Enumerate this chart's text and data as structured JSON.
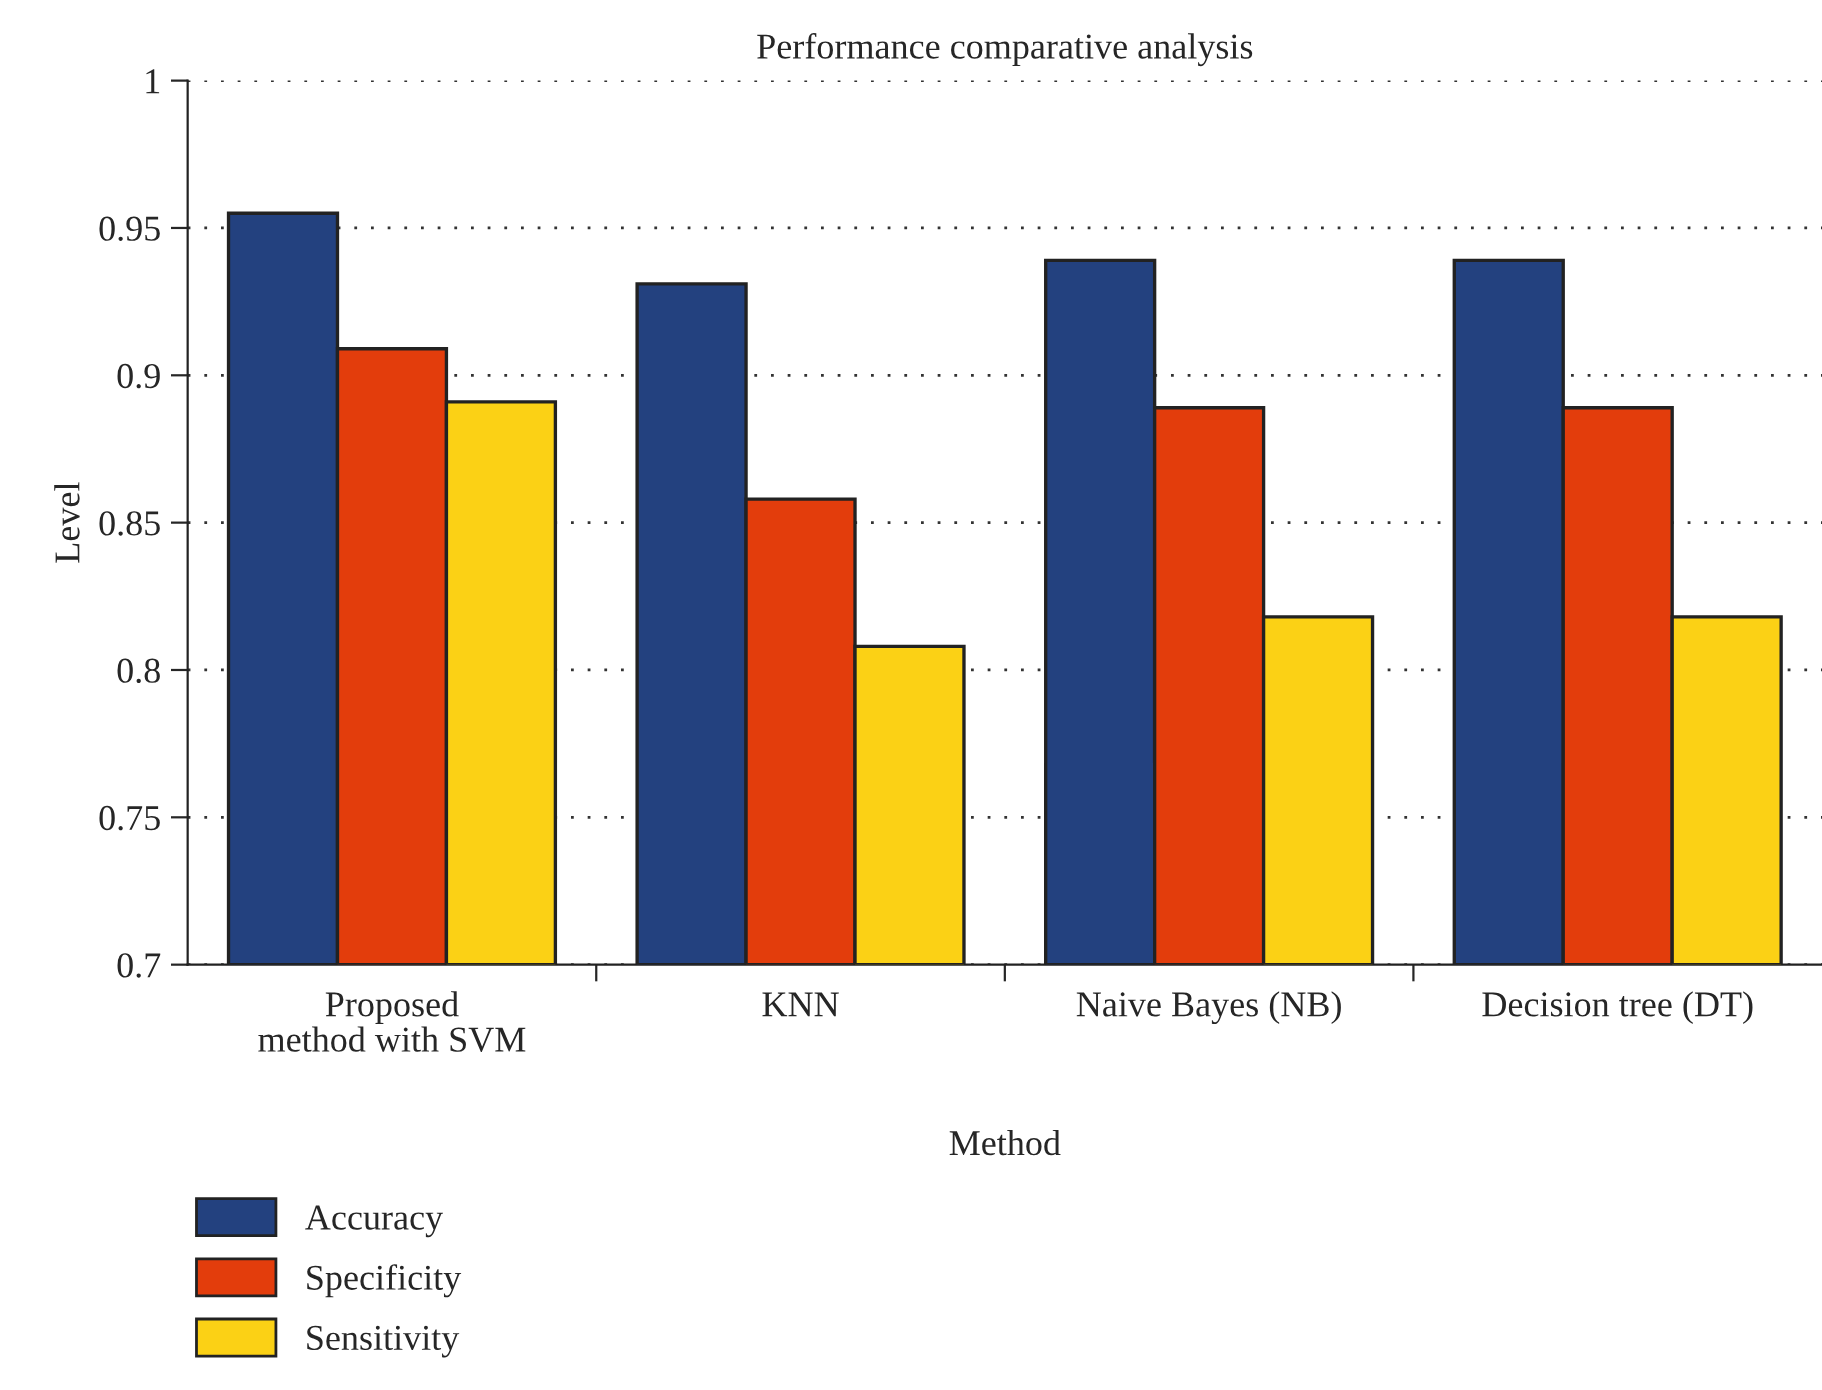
{
  "chart_data": {
    "type": "bar",
    "title": "Performance comparative analysis",
    "xlabel": "Method",
    "ylabel": "Level",
    "categories": [
      "Proposed\nmethod with SVM",
      "KNN",
      "Naive Bayes (NB)",
      "Decision tree (DT)"
    ],
    "series": [
      {
        "name": "Accuracy",
        "color": "#23417f",
        "values": [
          0.955,
          0.931,
          0.939,
          0.939
        ]
      },
      {
        "name": "Specificity",
        "color": "#e33d0c",
        "values": [
          0.909,
          0.858,
          0.889,
          0.889
        ]
      },
      {
        "name": "Sensitivity",
        "color": "#fbd115",
        "values": [
          0.891,
          0.808,
          0.818,
          0.818
        ]
      }
    ],
    "ylim": [
      0.7,
      1
    ],
    "yticks": [
      0.7,
      0.75,
      0.8,
      0.85,
      0.9,
      0.95,
      1
    ],
    "grid": "y",
    "legend": "bottom left"
  }
}
